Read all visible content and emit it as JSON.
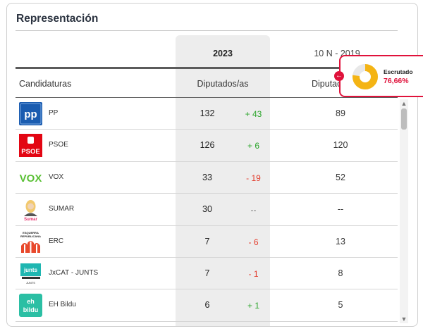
{
  "title": "Representación",
  "columns": {
    "year_current": "2023",
    "year_previous": "10 N - 2019",
    "candidaturas": "Candidaturas",
    "diputados_current": "Diputados/as",
    "diputados_previous": "Diputad"
  },
  "scrutiny": {
    "label": "Escrutado",
    "value": "76,66%",
    "fraction": 0.7666,
    "color": "#f4b414"
  },
  "parties": [
    {
      "name": "PP",
      "seats": "132",
      "diff": "+ 43",
      "trend": "up",
      "seats_prev": "89",
      "logo_text": "pp",
      "icon": "pp-logo-icon"
    },
    {
      "name": "PSOE",
      "seats": "126",
      "diff": "+ 6",
      "trend": "up",
      "seats_prev": "120",
      "logo_text": "PSOE",
      "icon": "psoe-logo-icon"
    },
    {
      "name": "VOX",
      "seats": "33",
      "diff": "- 19",
      "trend": "down",
      "seats_prev": "52",
      "logo_text": "VOX",
      "icon": "vox-logo-icon"
    },
    {
      "name": "SUMAR",
      "seats": "30",
      "diff": "--",
      "trend": "flat",
      "seats_prev": "--",
      "logo_text": "Sumar",
      "icon": "sumar-logo-icon"
    },
    {
      "name": "ERC",
      "seats": "7",
      "diff": "- 6",
      "trend": "down",
      "seats_prev": "13",
      "logo_text": "ESQUERRA REPUBLICANA",
      "icon": "erc-logo-icon"
    },
    {
      "name": "JxCAT - JUNTS",
      "seats": "7",
      "diff": "- 1",
      "trend": "down",
      "seats_prev": "8",
      "logo_text": "junts",
      "icon": "junts-logo-icon"
    },
    {
      "name": "EH Bildu",
      "seats": "6",
      "diff": "+ 1",
      "trend": "up",
      "seats_prev": "5",
      "logo_text": "eh bildu",
      "icon": "bildu-logo-icon"
    }
  ]
}
